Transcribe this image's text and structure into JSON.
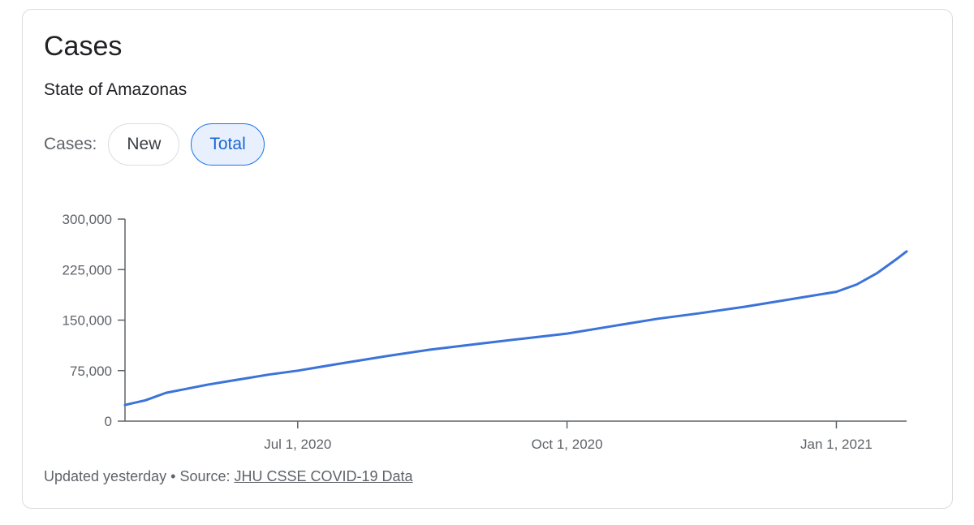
{
  "card": {
    "title": "Cases",
    "subtitle": "State of Amazonas",
    "toggle_label": "Cases:",
    "toggle_options": [
      "New",
      "Total"
    ],
    "selected_option": "Total"
  },
  "footer": {
    "updated": "Updated yesterday",
    "separator": "•",
    "source_label": "Source:",
    "source_link": "JHU CSSE COVID-19 Data"
  },
  "colors": {
    "line": "#3b73d9",
    "axis": "#5f6368",
    "selected_chip_bg": "#e8f0fe",
    "selected_chip_text": "#1967d2"
  },
  "chart_data": {
    "type": "line",
    "title": "Cases",
    "subtitle": "State of Amazonas",
    "xlabel": "",
    "ylabel": "",
    "ylim": [
      0,
      300000
    ],
    "yticks": [
      0,
      75000,
      150000,
      225000,
      300000
    ],
    "ytick_labels": [
      "0",
      "75,000",
      "150,000",
      "225,000",
      "300,000"
    ],
    "xlim": [
      "2020-05-03",
      "2021-01-25"
    ],
    "xticks": [
      "2020-07-01",
      "2020-10-01",
      "2021-01-01"
    ],
    "xtick_labels": [
      "Jul 1, 2020",
      "Oct 1, 2020",
      "Jan 1, 2021"
    ],
    "grid": false,
    "legend": "none",
    "series": [
      {
        "x": [
          "2020-05-03",
          "2020-05-10",
          "2020-05-17",
          "2020-05-24",
          "2020-05-31",
          "2020-06-07",
          "2020-06-14",
          "2020-06-21",
          "2020-07-01",
          "2020-07-15",
          "2020-08-01",
          "2020-08-15",
          "2020-09-01",
          "2020-09-15",
          "2020-10-01",
          "2020-10-15",
          "2020-11-01",
          "2020-11-15",
          "2020-12-01",
          "2020-12-15",
          "2021-01-01",
          "2021-01-08",
          "2021-01-15",
          "2021-01-22",
          "2021-01-25"
        ],
        "values": [
          24000,
          31000,
          42000,
          48000,
          54000,
          59000,
          64000,
          69000,
          75000,
          85000,
          97000,
          106000,
          115000,
          122000,
          130000,
          140000,
          152000,
          160000,
          170000,
          180000,
          192000,
          203000,
          220000,
          242000,
          252000
        ]
      }
    ]
  }
}
